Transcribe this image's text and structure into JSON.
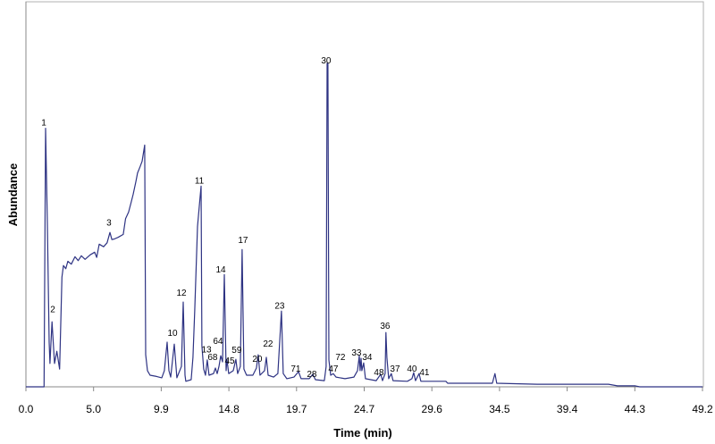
{
  "chart_data": {
    "type": "line",
    "title": "",
    "xlabel": "Time (min)",
    "ylabel": "Abundance",
    "xlim": [
      0,
      49.2
    ],
    "ylim": [
      0,
      119
    ],
    "grid": false,
    "line_color": "#2e3383",
    "x_ticks": [
      "0.0",
      "5.0",
      "9.9",
      "14.8",
      "19.7",
      "24.7",
      "29.6",
      "34.5",
      "39.4",
      "44.3",
      "49.2"
    ],
    "x_tick_values": [
      0,
      4.92,
      9.84,
      14.76,
      19.68,
      24.6,
      29.52,
      34.44,
      39.36,
      44.28,
      49.2
    ],
    "series": [
      {
        "points": [
          [
            0,
            0
          ],
          [
            1.32,
            0
          ],
          [
            1.43,
            79.9
          ],
          [
            1.56,
            50.4
          ],
          [
            1.69,
            13.8
          ],
          [
            1.75,
            7.2
          ],
          [
            1.9,
            20.1
          ],
          [
            2.08,
            7.2
          ],
          [
            2.25,
            11.0
          ],
          [
            2.45,
            5.5
          ],
          [
            2.62,
            33.9
          ],
          [
            2.73,
            37.5
          ],
          [
            2.9,
            36.5
          ],
          [
            3.05,
            38.8
          ],
          [
            3.3,
            37.9
          ],
          [
            3.57,
            40.2
          ],
          [
            3.8,
            39.0
          ],
          [
            4.03,
            40.5
          ],
          [
            4.3,
            39.4
          ],
          [
            4.68,
            40.8
          ],
          [
            5.0,
            41.6
          ],
          [
            5.15,
            40.0
          ],
          [
            5.33,
            44.1
          ],
          [
            5.65,
            43.3
          ],
          [
            5.9,
            44.5
          ],
          [
            6.11,
            47.7
          ],
          [
            6.25,
            45.5
          ],
          [
            6.43,
            45.7
          ],
          [
            6.7,
            46.2
          ],
          [
            7.08,
            47.1
          ],
          [
            7.25,
            52.0
          ],
          [
            7.47,
            54.0
          ],
          [
            7.65,
            57.0
          ],
          [
            7.8,
            59.5
          ],
          [
            8.0,
            63.5
          ],
          [
            8.12,
            66.1
          ],
          [
            8.3,
            68.0
          ],
          [
            8.45,
            69.7
          ],
          [
            8.64,
            74.7
          ],
          [
            8.71,
            9.9
          ],
          [
            8.84,
            5.0
          ],
          [
            9.03,
            3.6
          ],
          [
            9.5,
            3.2
          ],
          [
            9.88,
            2.8
          ],
          [
            10.07,
            5.0
          ],
          [
            10.27,
            13.8
          ],
          [
            10.4,
            5.0
          ],
          [
            10.53,
            3.0
          ],
          [
            10.79,
            13.2
          ],
          [
            10.98,
            2.8
          ],
          [
            11.31,
            6.3
          ],
          [
            11.44,
            26.2
          ],
          [
            11.57,
            3.6
          ],
          [
            11.63,
            1.7
          ],
          [
            12.02,
            2.2
          ],
          [
            12.15,
            9.1
          ],
          [
            12.28,
            23.7
          ],
          [
            12.48,
            49.6
          ],
          [
            12.67,
            58.7
          ],
          [
            12.74,
            62.0
          ],
          [
            12.8,
            12.7
          ],
          [
            12.93,
            5.5
          ],
          [
            13.06,
            3.6
          ],
          [
            13.19,
            8.3
          ],
          [
            13.32,
            3.6
          ],
          [
            13.64,
            4.1
          ],
          [
            13.78,
            5.8
          ],
          [
            13.91,
            4.1
          ],
          [
            14.04,
            6.3
          ],
          [
            14.17,
            9.6
          ],
          [
            14.3,
            7.7
          ],
          [
            14.43,
            34.7
          ],
          [
            14.56,
            5.0
          ],
          [
            14.62,
            8.5
          ],
          [
            14.75,
            4.1
          ],
          [
            15.08,
            5.0
          ],
          [
            15.27,
            8.5
          ],
          [
            15.4,
            4.1
          ],
          [
            15.59,
            6.3
          ],
          [
            15.72,
            42.4
          ],
          [
            15.85,
            5.5
          ],
          [
            16.05,
            3.6
          ],
          [
            16.5,
            3.6
          ],
          [
            16.76,
            5.8
          ],
          [
            16.89,
            9.9
          ],
          [
            17.02,
            3.6
          ],
          [
            17.35,
            5.0
          ],
          [
            17.48,
            9.1
          ],
          [
            17.61,
            3.6
          ],
          [
            18.0,
            3.0
          ],
          [
            18.32,
            4.1
          ],
          [
            18.58,
            23.4
          ],
          [
            18.71,
            4.1
          ],
          [
            18.97,
            2.5
          ],
          [
            19.49,
            3.0
          ],
          [
            19.82,
            4.7
          ],
          [
            20.01,
            2.5
          ],
          [
            20.6,
            2.5
          ],
          [
            20.86,
            3.9
          ],
          [
            21.05,
            2.2
          ],
          [
            21.7,
            1.9
          ],
          [
            21.83,
            6.3
          ],
          [
            21.9,
            100
          ],
          [
            21.96,
            100
          ],
          [
            22.03,
            8.3
          ],
          [
            22.16,
            3.6
          ],
          [
            22.35,
            4.1
          ],
          [
            22.55,
            3.0
          ],
          [
            23.2,
            2.5
          ],
          [
            23.85,
            3.0
          ],
          [
            24.11,
            5.0
          ],
          [
            24.24,
            9.6
          ],
          [
            24.3,
            5.0
          ],
          [
            24.37,
            8.8
          ],
          [
            24.43,
            5.0
          ],
          [
            24.56,
            7.4
          ],
          [
            24.69,
            2.5
          ],
          [
            25.47,
            1.9
          ],
          [
            25.8,
            3.9
          ],
          [
            25.93,
            1.9
          ],
          [
            26.12,
            4.1
          ],
          [
            26.18,
            16.8
          ],
          [
            26.25,
            9.1
          ],
          [
            26.38,
            2.5
          ],
          [
            26.57,
            4.1
          ],
          [
            26.7,
            1.9
          ],
          [
            27.74,
            1.7
          ],
          [
            28.07,
            2.5
          ],
          [
            28.2,
            4.4
          ],
          [
            28.33,
            1.9
          ],
          [
            28.59,
            4.1
          ],
          [
            28.72,
            1.7
          ],
          [
            30.54,
            1.7
          ],
          [
            30.67,
            1.1
          ],
          [
            33.92,
            1.1
          ],
          [
            34.11,
            4.1
          ],
          [
            34.24,
            1.1
          ],
          [
            37.17,
            0.8
          ],
          [
            40.42,
            0.8
          ],
          [
            42.36,
            0.8
          ],
          [
            43.01,
            0.3
          ],
          [
            44.31,
            0.3
          ],
          [
            44.64,
            0
          ],
          [
            49.2,
            0
          ]
        ]
      }
    ],
    "peaks": [
      {
        "label": "1",
        "t": 1.3,
        "a": 81.8
      },
      {
        "label": "2",
        "t": 1.95,
        "a": 24.2
      },
      {
        "label": "3",
        "t": 6.04,
        "a": 51.0
      },
      {
        "label": "10",
        "t": 10.66,
        "a": 16.8
      },
      {
        "label": "11",
        "t": 12.61,
        "a": 63.9
      },
      {
        "label": "12",
        "t": 11.31,
        "a": 29.2
      },
      {
        "label": "13",
        "t": 13.13,
        "a": 11.8
      },
      {
        "label": "64",
        "t": 13.97,
        "a": 14.3
      },
      {
        "label": "68",
        "t": 13.58,
        "a": 9.4
      },
      {
        "label": "14",
        "t": 14.17,
        "a": 36.4
      },
      {
        "label": "45",
        "t": 14.82,
        "a": 8.3
      },
      {
        "label": "59",
        "t": 15.33,
        "a": 11.6
      },
      {
        "label": "17",
        "t": 15.79,
        "a": 45.5
      },
      {
        "label": "20",
        "t": 16.83,
        "a": 8.8
      },
      {
        "label": "22",
        "t": 17.61,
        "a": 13.5
      },
      {
        "label": "23",
        "t": 18.45,
        "a": 25.3
      },
      {
        "label": "71",
        "t": 19.62,
        "a": 5.8
      },
      {
        "label": "28",
        "t": 20.79,
        "a": 4.1
      },
      {
        "label": "30",
        "t": 21.83,
        "a": 101.1
      },
      {
        "label": "47",
        "t": 22.35,
        "a": 5.8
      },
      {
        "label": "72",
        "t": 22.87,
        "a": 9.4
      },
      {
        "label": "33",
        "t": 24.04,
        "a": 10.7
      },
      {
        "label": "34",
        "t": 24.82,
        "a": 9.4
      },
      {
        "label": "48",
        "t": 25.67,
        "a": 4.7
      },
      {
        "label": "36",
        "t": 26.12,
        "a": 19.0
      },
      {
        "label": "37",
        "t": 26.84,
        "a": 5.8
      },
      {
        "label": "40",
        "t": 28.07,
        "a": 5.8
      },
      {
        "label": "41",
        "t": 28.98,
        "a": 4.7
      }
    ]
  }
}
